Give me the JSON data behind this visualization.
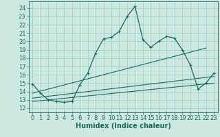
{
  "xlabel": "Humidex (Indice chaleur)",
  "ylabel": "",
  "bg_color": "#cce8e0",
  "line_color": "#1a6b5a",
  "xlim": [
    -0.5,
    23.5
  ],
  "ylim": [
    11.5,
    24.8
  ],
  "yticks": [
    12,
    13,
    14,
    15,
    16,
    17,
    18,
    19,
    20,
    21,
    22,
    23,
    24
  ],
  "xticks": [
    0,
    1,
    2,
    3,
    4,
    5,
    6,
    7,
    8,
    9,
    10,
    11,
    12,
    13,
    14,
    15,
    16,
    17,
    18,
    19,
    20,
    21,
    22,
    23
  ],
  "main_x": [
    0,
    1,
    2,
    3,
    4,
    5,
    6,
    7,
    8,
    9,
    10,
    11,
    12,
    13,
    14,
    15,
    16,
    17,
    18,
    19,
    20,
    21,
    22,
    23
  ],
  "main_y": [
    14.9,
    13.8,
    13.0,
    12.8,
    12.7,
    12.8,
    14.8,
    16.2,
    18.6,
    20.3,
    20.5,
    21.2,
    23.0,
    24.2,
    20.2,
    19.3,
    20.0,
    20.6,
    20.4,
    19.0,
    17.2,
    14.3,
    15.0,
    16.2
  ],
  "line1_x": [
    0,
    22
  ],
  "line1_y": [
    13.8,
    19.2
  ],
  "line2_x": [
    0,
    23
  ],
  "line2_y": [
    13.2,
    15.8
  ],
  "line3_x": [
    0,
    23
  ],
  "line3_y": [
    12.8,
    15.0
  ],
  "grid_color": "#99ccc0",
  "xlabel_fontsize": 7,
  "tick_fontsize": 6
}
